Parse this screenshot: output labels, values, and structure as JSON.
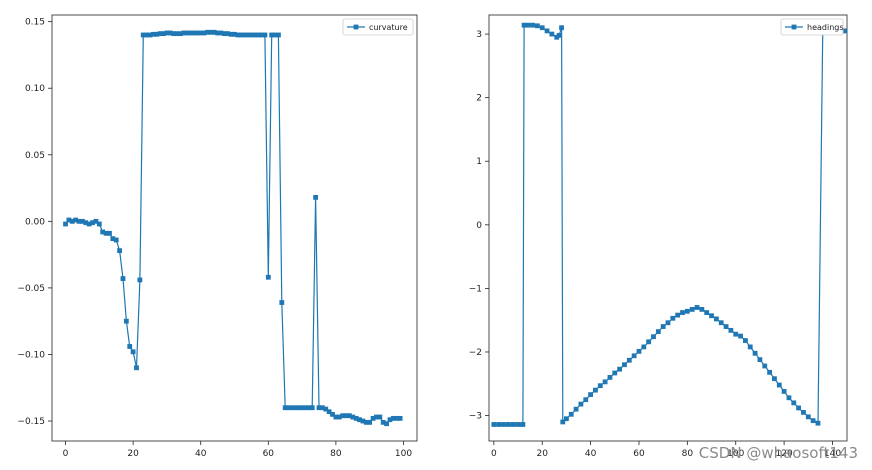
{
  "colors": {
    "series": "#1f77b4",
    "axis": "#222222",
    "background": "#ffffff",
    "watermark": "#8a8a8a"
  },
  "watermark": "CSDN @whaosoft143",
  "chart_data": [
    {
      "type": "line",
      "marker": "square",
      "legend": {
        "entries": [
          "curvature"
        ],
        "placement": "top-right"
      },
      "grid": false,
      "xlim": [
        -4,
        104
      ],
      "ylim": [
        -0.165,
        0.155
      ],
      "xticks": [
        0,
        20,
        40,
        60,
        80,
        100
      ],
      "xtick_labels": [
        "0",
        "20",
        "40",
        "60",
        "80",
        "100"
      ],
      "yticks": [
        -0.15,
        -0.1,
        -0.05,
        0.0,
        0.05,
        0.1,
        0.15
      ],
      "ytick_labels": [
        "−0.15",
        "−0.10",
        "−0.05",
        "0.00",
        "0.05",
        "0.10",
        "0.15"
      ],
      "series": [
        {
          "name": "curvature",
          "x": [
            0,
            1,
            2,
            3,
            4,
            5,
            6,
            7,
            8,
            9,
            10,
            11,
            12,
            13,
            14,
            15,
            16,
            17,
            18,
            19,
            20,
            21,
            22,
            23,
            24,
            25,
            26,
            27,
            28,
            29,
            30,
            31,
            32,
            33,
            34,
            35,
            36,
            37,
            38,
            39,
            40,
            41,
            42,
            43,
            44,
            45,
            46,
            47,
            48,
            49,
            50,
            51,
            52,
            53,
            54,
            55,
            56,
            57,
            58,
            59,
            60,
            61,
            62,
            63,
            64,
            65,
            66,
            67,
            68,
            69,
            70,
            71,
            72,
            73,
            74,
            75,
            76,
            77,
            78,
            79,
            80,
            81,
            82,
            83,
            84,
            85,
            86,
            87,
            88,
            89,
            90,
            91,
            92,
            93,
            94,
            95,
            96,
            97,
            98,
            99
          ],
          "y": [
            -0.002,
            0.001,
            0.0,
            0.001,
            0.0,
            0.0,
            -0.001,
            -0.002,
            -0.001,
            0.0,
            -0.002,
            -0.008,
            -0.009,
            -0.009,
            -0.013,
            -0.014,
            -0.022,
            -0.043,
            -0.075,
            -0.094,
            -0.098,
            -0.11,
            -0.044,
            0.14,
            0.14,
            0.14,
            0.1405,
            0.1405,
            0.141,
            0.141,
            0.1415,
            0.1415,
            0.141,
            0.141,
            0.141,
            0.1415,
            0.1415,
            0.1415,
            0.1415,
            0.1415,
            0.1415,
            0.1415,
            0.142,
            0.142,
            0.142,
            0.1415,
            0.1415,
            0.141,
            0.141,
            0.1405,
            0.1405,
            0.14,
            0.14,
            0.14,
            0.14,
            0.14,
            0.14,
            0.14,
            0.14,
            0.14,
            -0.042,
            0.14,
            0.14,
            0.14,
            -0.061,
            -0.14,
            -0.14,
            -0.14,
            -0.14,
            -0.14,
            -0.14,
            -0.14,
            -0.14,
            -0.14,
            0.018,
            -0.14,
            -0.14,
            -0.141,
            -0.143,
            -0.145,
            -0.147,
            -0.147,
            -0.146,
            -0.146,
            -0.146,
            -0.147,
            -0.148,
            -0.149,
            -0.15,
            -0.151,
            -0.151,
            -0.148,
            -0.147,
            -0.147,
            -0.151,
            -0.152,
            -0.149,
            -0.148,
            -0.148,
            -0.148
          ]
        }
      ]
    },
    {
      "type": "line",
      "marker": "square",
      "legend": {
        "entries": [
          "headings"
        ],
        "placement": "top-right"
      },
      "grid": false,
      "xlim": [
        -2,
        146
      ],
      "ylim": [
        -3.4,
        3.3
      ],
      "xticks": [
        0,
        20,
        40,
        60,
        80,
        100,
        120,
        140
      ],
      "xtick_labels": [
        "0",
        "20",
        "40",
        "60",
        "80",
        "100",
        "120",
        "140"
      ],
      "yticks": [
        -3,
        -2,
        -1,
        0,
        1,
        2,
        3
      ],
      "ytick_labels": [
        "−3",
        "−2",
        "−1",
        "0",
        "1",
        "2",
        "3"
      ],
      "series": [
        {
          "name": "headings",
          "x": [
            0,
            2,
            4,
            6,
            8,
            10,
            12,
            12.5,
            14,
            16,
            18,
            20,
            22,
            24,
            26,
            27,
            28,
            28.5,
            30,
            32,
            34,
            36,
            38,
            40,
            42,
            44,
            46,
            48,
            50,
            52,
            54,
            56,
            58,
            60,
            62,
            64,
            66,
            68,
            70,
            72,
            74,
            76,
            78,
            80,
            82,
            84,
            86,
            88,
            90,
            92,
            94,
            96,
            98,
            100,
            102,
            104,
            106,
            108,
            110,
            112,
            114,
            116,
            118,
            120,
            122,
            124,
            126,
            128,
            130,
            132,
            134,
            136,
            138,
            140,
            142,
            143,
            144,
            145
          ],
          "y": [
            -3.14,
            -3.14,
            -3.14,
            -3.14,
            -3.14,
            -3.14,
            -3.14,
            3.14,
            3.14,
            3.14,
            3.13,
            3.1,
            3.05,
            3.0,
            2.95,
            2.98,
            3.1,
            -3.1,
            -3.05,
            -2.98,
            -2.9,
            -2.82,
            -2.75,
            -2.67,
            -2.6,
            -2.53,
            -2.47,
            -2.4,
            -2.33,
            -2.27,
            -2.2,
            -2.13,
            -2.06,
            -1.99,
            -1.92,
            -1.84,
            -1.76,
            -1.68,
            -1.6,
            -1.54,
            -1.47,
            -1.42,
            -1.38,
            -1.36,
            -1.33,
            -1.3,
            -1.33,
            -1.38,
            -1.43,
            -1.48,
            -1.54,
            -1.6,
            -1.66,
            -1.72,
            -1.75,
            -1.82,
            -1.92,
            -2.02,
            -2.12,
            -2.22,
            -2.32,
            -2.42,
            -2.52,
            -2.62,
            -2.72,
            -2.8,
            -2.88,
            -2.95,
            -3.02,
            -3.08,
            -3.12,
            3.12,
            3.1,
            3.06,
            3.06,
            3.05,
            3.05,
            3.05
          ]
        }
      ]
    }
  ]
}
